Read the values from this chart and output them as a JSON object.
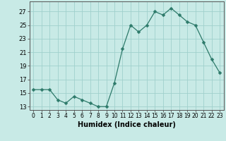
{
  "x": [
    0,
    1,
    2,
    3,
    4,
    5,
    6,
    7,
    8,
    9,
    10,
    11,
    12,
    13,
    14,
    15,
    16,
    17,
    18,
    19,
    20,
    21,
    22,
    23
  ],
  "y": [
    15.5,
    15.5,
    15.5,
    14.0,
    13.5,
    14.5,
    14.0,
    13.5,
    13.0,
    13.0,
    16.5,
    21.5,
    25.0,
    24.0,
    25.0,
    27.0,
    26.5,
    27.5,
    26.5,
    25.5,
    25.0,
    22.5,
    20.0,
    18.0
  ],
  "line_color": "#2d7a6a",
  "marker": "D",
  "marker_size": 2.5,
  "background_color": "#c8eae6",
  "grid_color": "#a0d0cc",
  "ylabel_values": [
    13,
    15,
    17,
    19,
    21,
    23,
    25,
    27
  ],
  "xlabel": "Humidex (Indice chaleur)",
  "xlim": [
    -0.5,
    23.5
  ],
  "ylim": [
    12.5,
    28.5
  ],
  "xtick_labels": [
    "0",
    "1",
    "2",
    "3",
    "4",
    "5",
    "6",
    "7",
    "8",
    "9",
    "10",
    "11",
    "12",
    "13",
    "14",
    "15",
    "16",
    "17",
    "18",
    "19",
    "20",
    "21",
    "22",
    "23"
  ],
  "axis_label_fontsize": 7,
  "tick_fontsize": 6,
  "line_width": 0.9
}
